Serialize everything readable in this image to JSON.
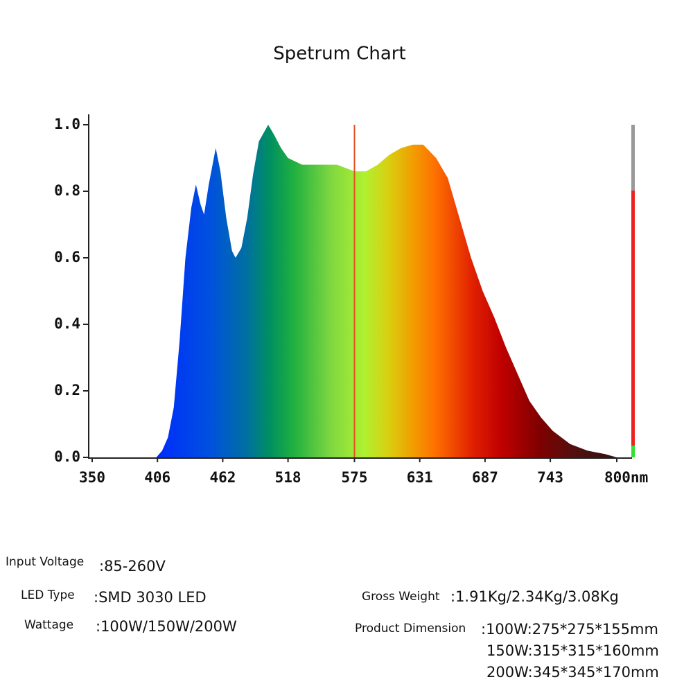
{
  "chart_data": {
    "type": "area",
    "title": "Spetrum Chart",
    "x": [
      350,
      405,
      410,
      415,
      420,
      425,
      430,
      435,
      439,
      443,
      446,
      450,
      456,
      460,
      465,
      470,
      473,
      478,
      483,
      488,
      493,
      501,
      506,
      512,
      518,
      530,
      545,
      560,
      575,
      585,
      595,
      605,
      615,
      625,
      634,
      645,
      655,
      665,
      675,
      685,
      695,
      705,
      715,
      725,
      735,
      745,
      760,
      775,
      790,
      800
    ],
    "series": [
      {
        "values": [
          0,
          0,
          0.02,
          0.06,
          0.15,
          0.35,
          0.6,
          0.75,
          0.82,
          0.76,
          0.73,
          0.82,
          0.93,
          0.86,
          0.72,
          0.62,
          0.6,
          0.63,
          0.72,
          0.85,
          0.95,
          1.0,
          0.97,
          0.93,
          0.9,
          0.88,
          0.88,
          0.88,
          0.86,
          0.86,
          0.88,
          0.91,
          0.93,
          0.94,
          0.94,
          0.9,
          0.84,
          0.72,
          0.6,
          0.5,
          0.42,
          0.33,
          0.25,
          0.17,
          0.12,
          0.08,
          0.04,
          0.02,
          0.01,
          0
        ]
      }
    ],
    "xlim": [
      350,
      800
    ],
    "ylim": [
      0,
      1
    ],
    "xticks": [
      350,
      406,
      462,
      518,
      575,
      631,
      687,
      743,
      {
        "value": 800,
        "label": "800nm"
      }
    ],
    "yticks": [
      {
        "value": 0,
        "label": "0.0"
      },
      0.2,
      0.4,
      0.6,
      0.8,
      {
        "value": 1,
        "label": "1.0"
      }
    ],
    "marker_x": 575,
    "marker_color": "#e05020"
  },
  "specs": {
    "input_voltage": {
      "label": "Input Voltage",
      "value": ":85-260V"
    },
    "led_type": {
      "label": "LED Type",
      "value": ":SMD 3030 LED"
    },
    "wattage": {
      "label": "Wattage",
      "value": ":100W/150W/200W"
    },
    "gross_weight": {
      "label": "Gross Weight",
      "value": ":1.91Kg/2.34Kg/3.08Kg"
    },
    "product_dimension": {
      "label": "Product Dimension",
      "values": [
        ":100W:275*275*155mm",
        "150W:315*315*160mm",
        "200W:345*345*170mm"
      ]
    }
  }
}
